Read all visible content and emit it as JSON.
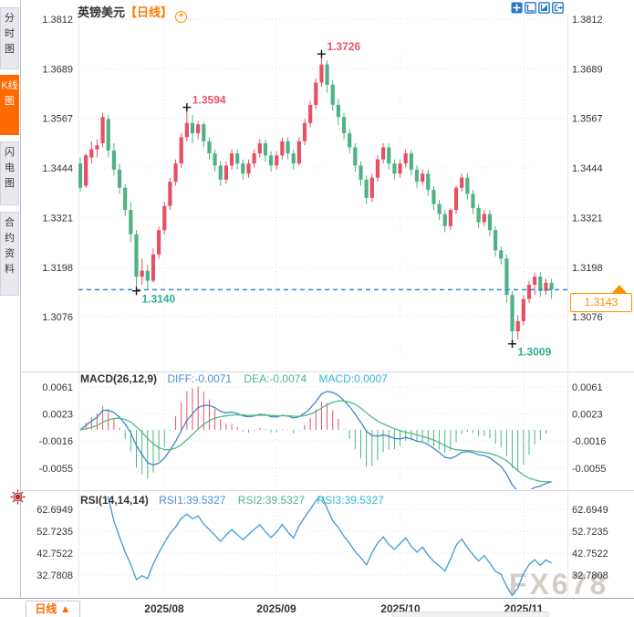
{
  "title": {
    "symbol": "英镑美元",
    "period_tag": "【日线】",
    "add_icon": "circle-plus-icon"
  },
  "sidebar": {
    "tabs": [
      {
        "label": "分时图",
        "active": false
      },
      {
        "label": "K线图",
        "active": true
      },
      {
        "label": "闪电图",
        "active": false
      },
      {
        "label": "合约资料",
        "active": false
      }
    ]
  },
  "toolbar": {
    "icons": [
      "crosshair-icon",
      "fit-axes-icon",
      "zoom-in-icon",
      "exit-chart-icon"
    ]
  },
  "macd_header": {
    "title": "MACD(26,12,9)",
    "diff": "DIFF:-0.0071",
    "dea": "DEA:-0.0074",
    "macd": "MACD:0.0007"
  },
  "rsi_header": {
    "title": "RSI(14,14,14)",
    "rsi1": "RSI1:39.5327",
    "rsi2": "RSI2:39.5327",
    "rsi3": "RSI3:39.5327"
  },
  "price_marker": {
    "label": "1.3143"
  },
  "bottom_bar": {
    "period_label": "日线",
    "arrow": "▲"
  },
  "watermark": "FX678",
  "chart_data": {
    "type": "candlestick",
    "title": "英镑美元 日线",
    "y_ticks_main": [
      "1.3812",
      "1.3689",
      "1.3567",
      "1.3444",
      "1.3321",
      "1.3198",
      "1.3076"
    ],
    "y_ticks_macd": [
      "0.0061",
      "0.0023",
      "-0.0016",
      "-0.0055"
    ],
    "y_ticks_rsi": [
      "62.6949",
      "52.7235",
      "42.7522",
      "32.7808"
    ],
    "x_labels": [
      "2025/08",
      "2025/09",
      "2025/10",
      "2025/11"
    ],
    "month_indices": [
      15,
      35,
      57,
      79
    ],
    "current_price": 1.3143,
    "annotations": [
      {
        "i": 10,
        "price": 1.314,
        "side": "low",
        "label": "1.3140"
      },
      {
        "i": 19,
        "price": 1.3594,
        "side": "high",
        "label": "1.3594"
      },
      {
        "i": 43,
        "price": 1.3726,
        "side": "high",
        "label": "1.3726"
      },
      {
        "i": 77,
        "price": 1.3009,
        "side": "low",
        "label": "1.3009"
      }
    ],
    "indicators": {
      "macd": {
        "params": [
          26,
          12,
          9
        ],
        "diff": -0.0071,
        "dea": -0.0074,
        "macd": 0.0007
      },
      "rsi": {
        "params": [
          14,
          14,
          14
        ],
        "rsi1": 39.5327,
        "rsi2": 39.5327,
        "rsi3": 39.5327
      }
    },
    "colors": {
      "up": "#e65064",
      "down": "#4fb286",
      "diff_line": "#3d87c9",
      "dea_line": "#53b987",
      "rsi_line": "#3d9bd5",
      "dashed": "#2e86d6",
      "anno_high": "#ef5067",
      "anno_low": "#2eaf92",
      "accent_orange": "#ff6a00",
      "grid": "#e2e2ea"
    },
    "ohlc": [
      [
        1.3455,
        1.347,
        1.3385,
        1.3395
      ],
      [
        1.34,
        1.348,
        1.3395,
        1.3475
      ],
      [
        1.347,
        1.351,
        1.3455,
        1.349
      ],
      [
        1.349,
        1.3515,
        1.347,
        1.35
      ],
      [
        1.3505,
        1.358,
        1.3495,
        1.357
      ],
      [
        1.3565,
        1.3575,
        1.347,
        1.3487
      ],
      [
        1.3487,
        1.3505,
        1.3425,
        1.344
      ],
      [
        1.344,
        1.3455,
        1.338,
        1.3395
      ],
      [
        1.3395,
        1.3405,
        1.3325,
        1.334
      ],
      [
        1.334,
        1.336,
        1.326,
        1.328
      ],
      [
        1.328,
        1.329,
        1.314,
        1.3175
      ],
      [
        1.3175,
        1.322,
        1.3155,
        1.319
      ],
      [
        1.319,
        1.3205,
        1.3145,
        1.3165
      ],
      [
        1.3165,
        1.3245,
        1.316,
        1.323
      ],
      [
        1.323,
        1.33,
        1.322,
        1.329
      ],
      [
        1.329,
        1.336,
        1.328,
        1.335
      ],
      [
        1.335,
        1.342,
        1.334,
        1.341
      ],
      [
        1.341,
        1.3465,
        1.34,
        1.3455
      ],
      [
        1.3455,
        1.353,
        1.3445,
        1.352
      ],
      [
        1.352,
        1.3594,
        1.351,
        1.3555
      ],
      [
        1.3555,
        1.3575,
        1.3505,
        1.353
      ],
      [
        1.353,
        1.356,
        1.3515,
        1.3552
      ],
      [
        1.3552,
        1.3558,
        1.3495,
        1.351
      ],
      [
        1.351,
        1.352,
        1.3465,
        1.348
      ],
      [
        1.348,
        1.349,
        1.3435,
        1.345
      ],
      [
        1.345,
        1.346,
        1.34,
        1.3415
      ],
      [
        1.3415,
        1.346,
        1.3405,
        1.345
      ],
      [
        1.345,
        1.349,
        1.344,
        1.348
      ],
      [
        1.348,
        1.349,
        1.344,
        1.3455
      ],
      [
        1.3455,
        1.3465,
        1.3415,
        1.343
      ],
      [
        1.343,
        1.3465,
        1.342,
        1.3455
      ],
      [
        1.3455,
        1.349,
        1.3445,
        1.348
      ],
      [
        1.348,
        1.3515,
        1.347,
        1.3505
      ],
      [
        1.3505,
        1.3515,
        1.346,
        1.3475
      ],
      [
        1.3475,
        1.3485,
        1.3435,
        1.345
      ],
      [
        1.345,
        1.3485,
        1.344,
        1.3475
      ],
      [
        1.3475,
        1.352,
        1.3465,
        1.351
      ],
      [
        1.351,
        1.352,
        1.3465,
        1.348
      ],
      [
        1.348,
        1.349,
        1.344,
        1.3455
      ],
      [
        1.3455,
        1.352,
        1.345,
        1.351
      ],
      [
        1.351,
        1.3565,
        1.35,
        1.3555
      ],
      [
        1.3555,
        1.361,
        1.3545,
        1.36
      ],
      [
        1.36,
        1.3665,
        1.359,
        1.3655
      ],
      [
        1.3655,
        1.3726,
        1.3645,
        1.37
      ],
      [
        1.37,
        1.371,
        1.363,
        1.365
      ],
      [
        1.365,
        1.366,
        1.3585,
        1.36
      ],
      [
        1.36,
        1.3615,
        1.355,
        1.357
      ],
      [
        1.357,
        1.358,
        1.3515,
        1.353
      ],
      [
        1.353,
        1.354,
        1.348,
        1.3495
      ],
      [
        1.3495,
        1.3505,
        1.3435,
        1.345
      ],
      [
        1.345,
        1.346,
        1.34,
        1.3415
      ],
      [
        1.3415,
        1.3425,
        1.3355,
        1.337
      ],
      [
        1.337,
        1.343,
        1.336,
        1.342
      ],
      [
        1.342,
        1.3475,
        1.341,
        1.3465
      ],
      [
        1.3465,
        1.3505,
        1.3455,
        1.3495
      ],
      [
        1.3495,
        1.3505,
        1.344,
        1.3455
      ],
      [
        1.3455,
        1.3465,
        1.3415,
        1.343
      ],
      [
        1.343,
        1.3465,
        1.342,
        1.3455
      ],
      [
        1.3455,
        1.349,
        1.3445,
        1.348
      ],
      [
        1.348,
        1.349,
        1.3425,
        1.344
      ],
      [
        1.344,
        1.345,
        1.3395,
        1.341
      ],
      [
        1.341,
        1.344,
        1.34,
        1.343
      ],
      [
        1.343,
        1.344,
        1.3375,
        1.339
      ],
      [
        1.339,
        1.34,
        1.334,
        1.3355
      ],
      [
        1.3355,
        1.3365,
        1.3315,
        1.333
      ],
      [
        1.333,
        1.334,
        1.3285,
        1.33
      ],
      [
        1.33,
        1.3345,
        1.329,
        1.334
      ],
      [
        1.334,
        1.34,
        1.333,
        1.3395
      ],
      [
        1.3395,
        1.343,
        1.3385,
        1.342
      ],
      [
        1.342,
        1.343,
        1.3365,
        1.338
      ],
      [
        1.338,
        1.339,
        1.333,
        1.3345
      ],
      [
        1.3345,
        1.3355,
        1.3295,
        1.331
      ],
      [
        1.331,
        1.334,
        1.33,
        1.333
      ],
      [
        1.333,
        1.334,
        1.3275,
        1.329
      ],
      [
        1.329,
        1.33,
        1.3225,
        1.324
      ],
      [
        1.324,
        1.325,
        1.3205,
        1.322
      ],
      [
        1.322,
        1.323,
        1.311,
        1.313
      ],
      [
        1.313,
        1.314,
        1.3009,
        1.304
      ],
      [
        1.304,
        1.308,
        1.302,
        1.3065
      ],
      [
        1.3065,
        1.313,
        1.3055,
        1.312
      ],
      [
        1.312,
        1.3165,
        1.311,
        1.3155
      ],
      [
        1.3155,
        1.3185,
        1.313,
        1.3175
      ],
      [
        1.3175,
        1.3185,
        1.3125,
        1.314
      ],
      [
        1.314,
        1.317,
        1.313,
        1.316
      ],
      [
        1.316,
        1.317,
        1.312,
        1.3143
      ]
    ]
  }
}
